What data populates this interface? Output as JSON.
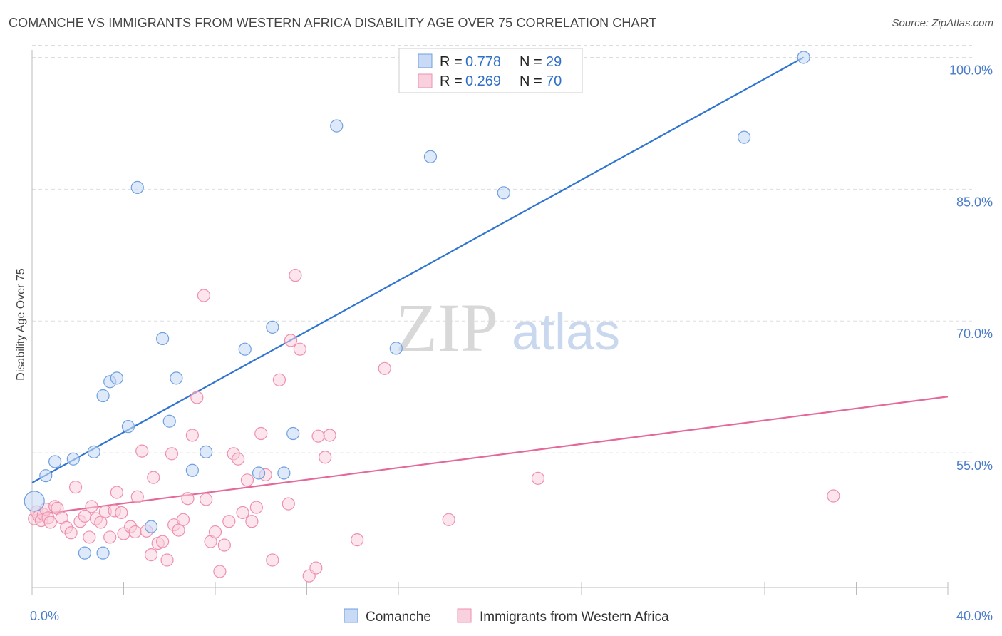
{
  "header": {
    "title": "COMANCHE VS IMMIGRANTS FROM WESTERN AFRICA DISABILITY AGE OVER 75 CORRELATION CHART",
    "source": "Source: ZipAtlas.com"
  },
  "watermark": {
    "zip": "ZIP",
    "atlas": "atlas"
  },
  "colors": {
    "comanche": "#6f9fe0",
    "comanche_fill": "#c8daf5",
    "comanche_line": "#2f74d0",
    "immigrants": "#ef8fac",
    "immigrants_fill": "#f9d0dd",
    "immigrants_line": "#e4699a",
    "tick": "#4a7cc9",
    "grid": "#dddddd"
  },
  "legend": {
    "rows": [
      {
        "r_label": "R = ",
        "r_value": "0.778",
        "n_label": "N = ",
        "n_value": "29",
        "series": "comanche"
      },
      {
        "r_label": "R = ",
        "r_value": "0.269",
        "n_label": "N = ",
        "n_value": "70",
        "series": "immigrants"
      }
    ]
  },
  "bottom_legend": [
    "Comanche",
    "Immigrants from Western Africa"
  ],
  "chart_data": {
    "type": "scatter",
    "title": "COMANCHE VS IMMIGRANTS FROM WESTERN AFRICA DISABILITY AGE OVER 75 CORRELATION CHART",
    "xlabel": "",
    "ylabel": "Disability Age Over 75",
    "xlim": [
      0,
      40
    ],
    "ylim": [
      40,
      101.5
    ],
    "x_tick_labels": [
      "0.0%",
      "40.0%"
    ],
    "y_ticks": [
      55,
      70,
      85,
      100
    ],
    "y_tick_labels": [
      "55.0%",
      "70.0%",
      "85.0%",
      "100.0%"
    ],
    "grid": true,
    "legend_position": "top-center",
    "series": [
      {
        "name": "Comanche",
        "r": 0.778,
        "n": 29,
        "trend": {
          "x": [
            0,
            33.7
          ],
          "y": [
            51.6,
            100.0
          ]
        },
        "points": [
          [
            0.1,
            49.5
          ],
          [
            0.6,
            52.4
          ],
          [
            1.0,
            54.0
          ],
          [
            1.8,
            54.3
          ],
          [
            2.7,
            55.1
          ],
          [
            2.3,
            43.6
          ],
          [
            3.1,
            43.6
          ],
          [
            3.1,
            61.5
          ],
          [
            3.4,
            63.1
          ],
          [
            3.7,
            63.5
          ],
          [
            4.2,
            58.0
          ],
          [
            4.6,
            85.2
          ],
          [
            5.2,
            46.6
          ],
          [
            5.7,
            68.0
          ],
          [
            6.0,
            58.6
          ],
          [
            6.3,
            63.5
          ],
          [
            7.0,
            53.0
          ],
          [
            7.6,
            55.1
          ],
          [
            9.3,
            66.8
          ],
          [
            9.9,
            52.7
          ],
          [
            10.5,
            69.3
          ],
          [
            11.0,
            52.7
          ],
          [
            11.4,
            57.2
          ],
          [
            13.3,
            92.2
          ],
          [
            15.9,
            66.9
          ],
          [
            17.4,
            88.7
          ],
          [
            20.6,
            84.6
          ],
          [
            31.1,
            90.9
          ],
          [
            33.7,
            100.0
          ]
        ]
      },
      {
        "name": "Immigrants from Western Africa",
        "r": 0.269,
        "n": 70,
        "trend": {
          "x": [
            0,
            40
          ],
          "y": [
            47.9,
            61.4
          ]
        },
        "points": [
          [
            0.1,
            47.5
          ],
          [
            0.2,
            48.3
          ],
          [
            0.3,
            47.8
          ],
          [
            0.4,
            47.3
          ],
          [
            0.5,
            48.0
          ],
          [
            0.6,
            48.6
          ],
          [
            0.7,
            47.6
          ],
          [
            0.8,
            47.1
          ],
          [
            1.0,
            48.9
          ],
          [
            1.1,
            48.7
          ],
          [
            1.3,
            47.6
          ],
          [
            1.5,
            46.5
          ],
          [
            1.7,
            45.9
          ],
          [
            1.9,
            51.1
          ],
          [
            2.1,
            47.2
          ],
          [
            2.3,
            47.8
          ],
          [
            2.5,
            45.4
          ],
          [
            2.6,
            48.9
          ],
          [
            2.8,
            47.5
          ],
          [
            3.0,
            47.1
          ],
          [
            3.2,
            48.3
          ],
          [
            3.4,
            45.4
          ],
          [
            3.6,
            48.4
          ],
          [
            3.7,
            50.5
          ],
          [
            3.9,
            48.2
          ],
          [
            4.0,
            45.8
          ],
          [
            4.3,
            46.6
          ],
          [
            4.5,
            46.0
          ],
          [
            4.6,
            50.0
          ],
          [
            4.8,
            55.2
          ],
          [
            5.0,
            46.1
          ],
          [
            5.2,
            43.4
          ],
          [
            5.3,
            52.2
          ],
          [
            5.5,
            44.7
          ],
          [
            5.7,
            44.9
          ],
          [
            5.9,
            42.8
          ],
          [
            6.1,
            54.9
          ],
          [
            6.2,
            46.8
          ],
          [
            6.4,
            46.2
          ],
          [
            6.6,
            47.4
          ],
          [
            6.8,
            49.8
          ],
          [
            7.0,
            57.0
          ],
          [
            7.2,
            61.3
          ],
          [
            7.5,
            72.9
          ],
          [
            7.6,
            49.7
          ],
          [
            7.8,
            44.9
          ],
          [
            8.0,
            46.0
          ],
          [
            8.2,
            41.5
          ],
          [
            8.4,
            44.5
          ],
          [
            8.6,
            47.2
          ],
          [
            8.8,
            54.9
          ],
          [
            9.0,
            54.3
          ],
          [
            9.2,
            48.2
          ],
          [
            9.4,
            51.9
          ],
          [
            9.6,
            47.2
          ],
          [
            9.8,
            48.8
          ],
          [
            10.0,
            57.2
          ],
          [
            10.2,
            52.5
          ],
          [
            10.5,
            42.8
          ],
          [
            10.8,
            63.3
          ],
          [
            11.2,
            49.2
          ],
          [
            11.3,
            67.8
          ],
          [
            11.5,
            75.2
          ],
          [
            11.7,
            66.8
          ],
          [
            12.1,
            41.0
          ],
          [
            12.4,
            41.9
          ],
          [
            12.8,
            54.5
          ],
          [
            13.0,
            57.0
          ],
          [
            14.2,
            45.1
          ],
          [
            18.2,
            47.4
          ]
        ]
      }
    ],
    "extra_points_immigrants": [
      [
        15.4,
        64.6
      ],
      [
        22.1,
        52.1
      ],
      [
        35.0,
        50.1
      ],
      [
        12.5,
        56.9
      ]
    ]
  }
}
